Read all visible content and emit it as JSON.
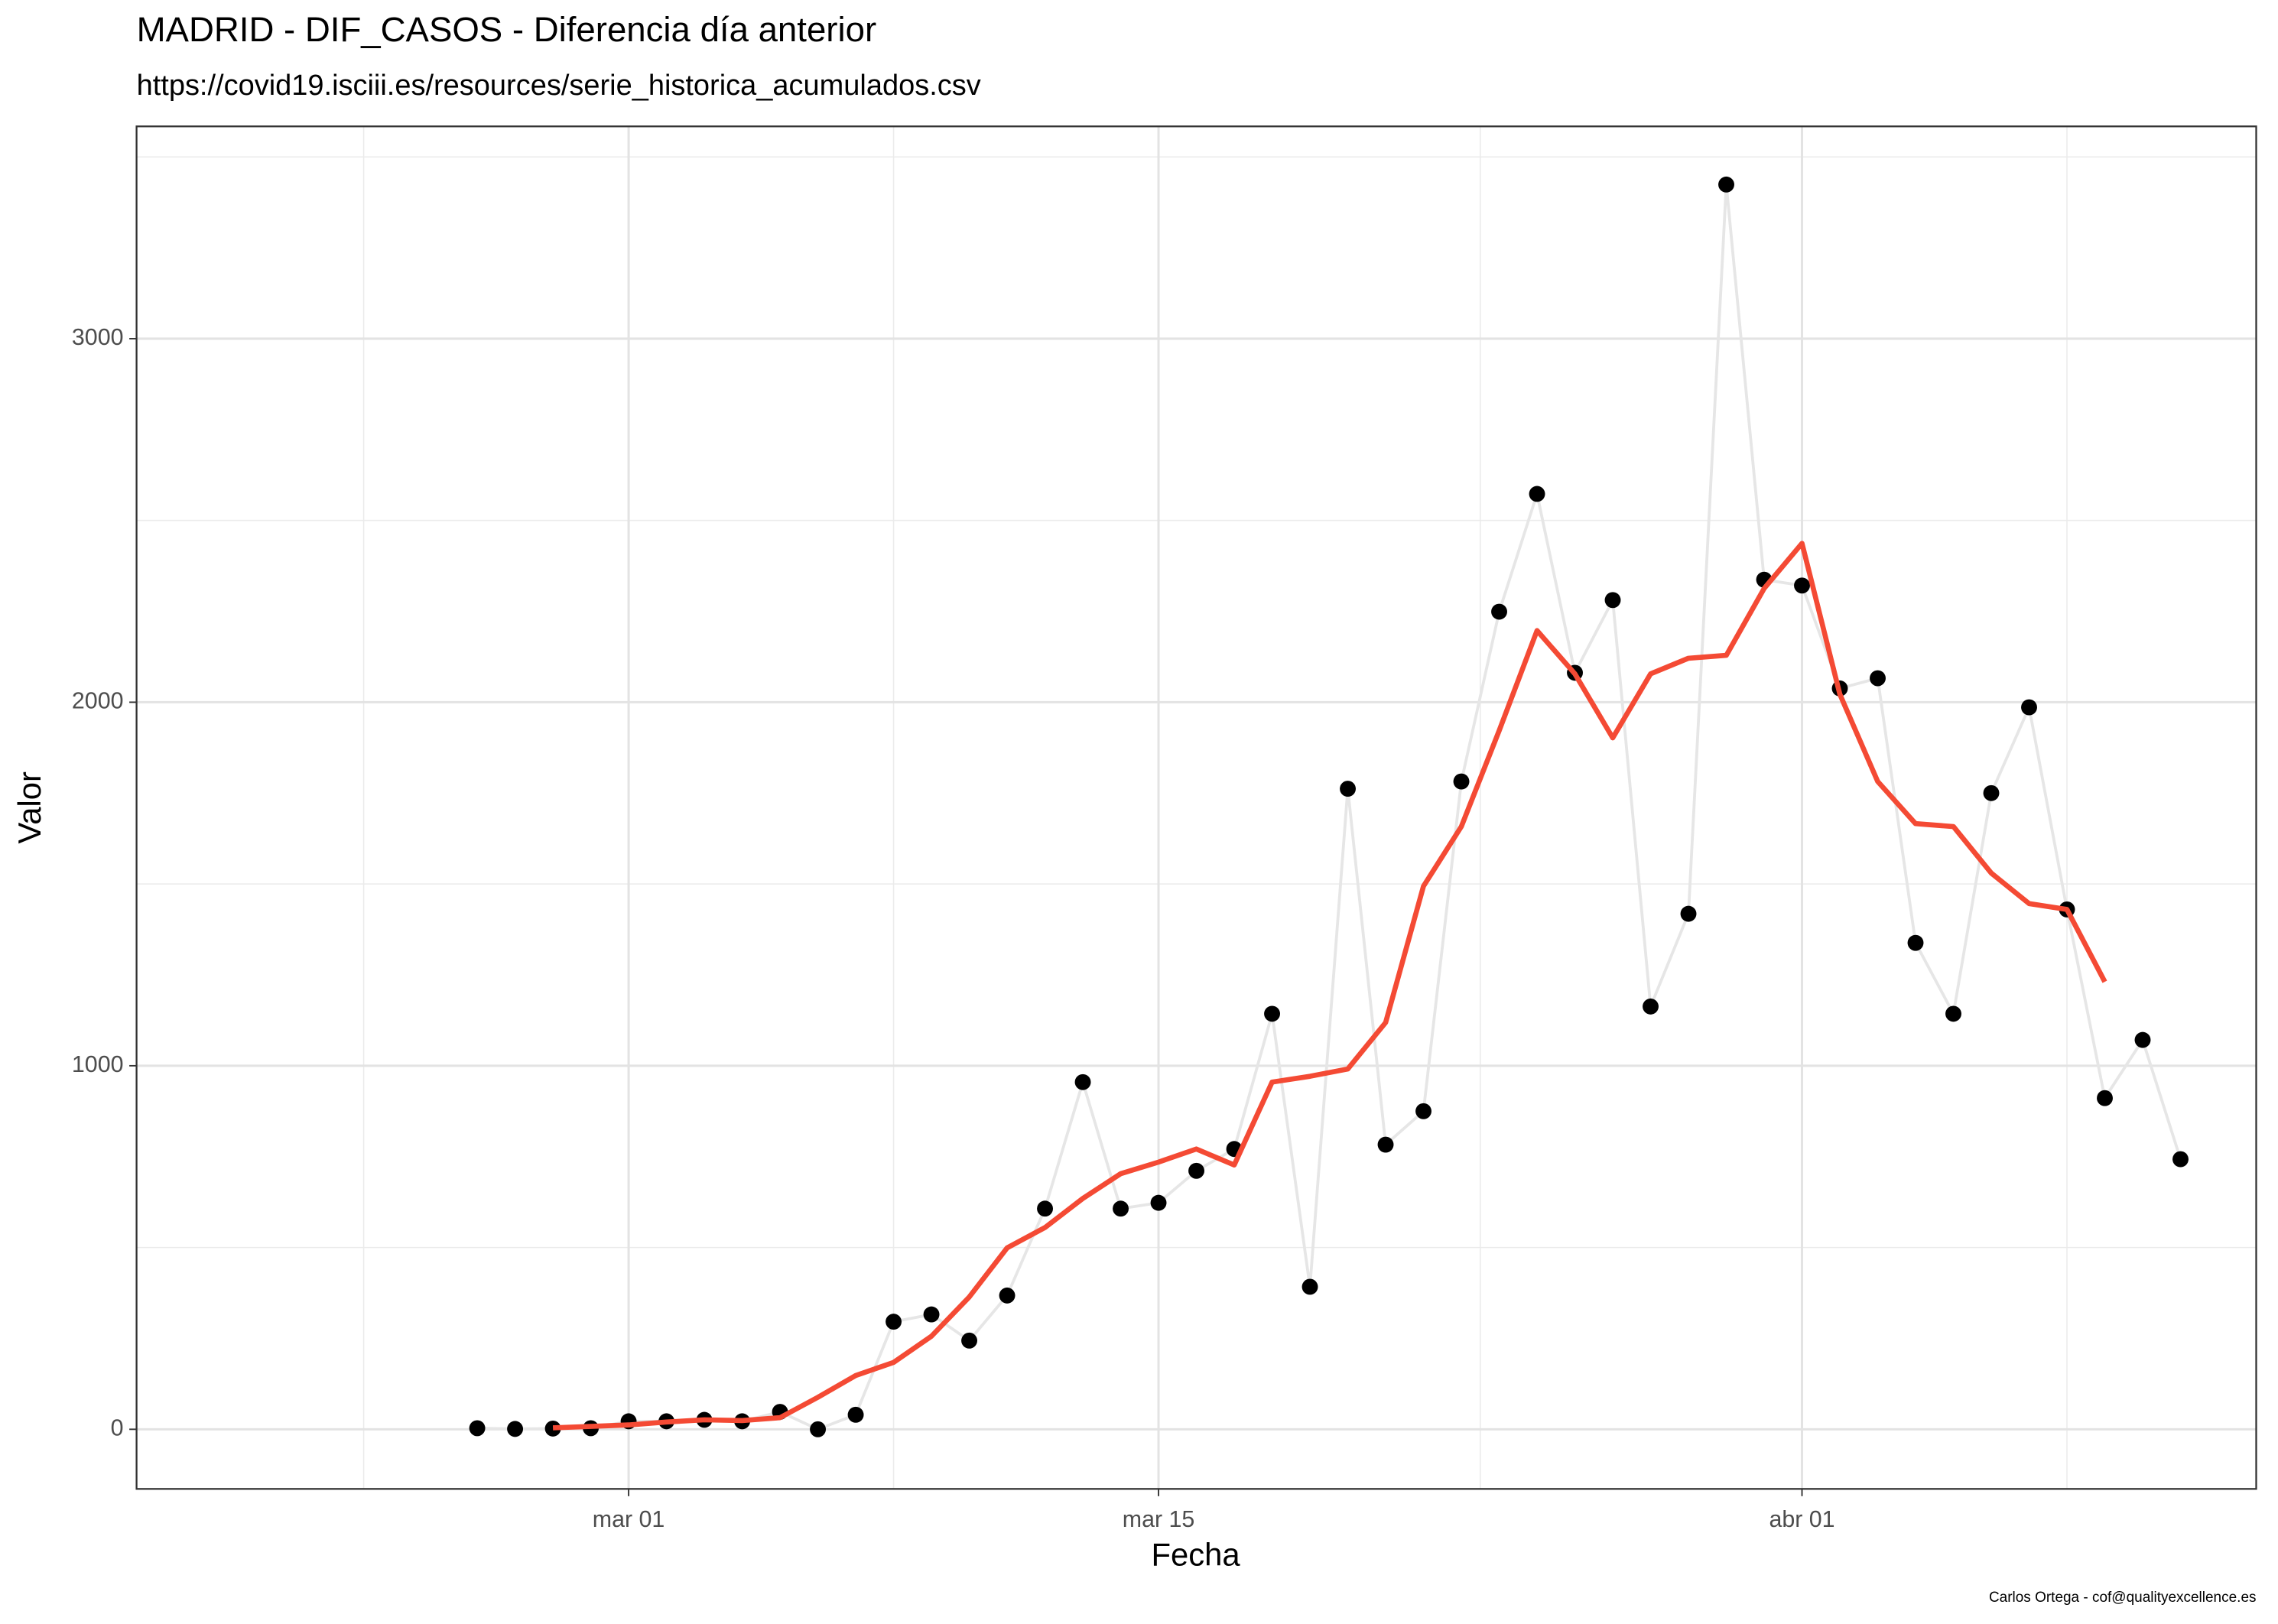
{
  "chart_data": {
    "type": "line",
    "title": "MADRID - DIF_CASOS - Diferencia día anterior",
    "subtitle": "https://covid19.isciii.es/resources/serie_historica_acumulados.csv",
    "x_label": "Fecha",
    "y_label": "Valor",
    "caption": "Carlos Ortega - cof@qualityexcellence.es",
    "x": [
      "02-26",
      "02-27",
      "02-28",
      "02-29",
      "03-01",
      "03-02",
      "03-03",
      "03-04",
      "03-05",
      "03-06",
      "03-07",
      "03-08",
      "03-09",
      "03-10",
      "03-11",
      "03-12",
      "03-13",
      "03-14",
      "03-15",
      "03-16",
      "03-17",
      "03-18",
      "03-19",
      "03-20",
      "03-21",
      "03-22",
      "03-23",
      "03-24",
      "03-25",
      "03-26",
      "03-27",
      "03-28",
      "03-29",
      "03-30",
      "03-31",
      "04-01",
      "04-02",
      "04-03",
      "04-04",
      "04-05",
      "04-06",
      "04-07",
      "04-08",
      "04-09",
      "04-10",
      "04-11"
    ],
    "series": [
      {
        "color": "#000000",
        "line_color": "#e6e6e6",
        "values": [
          3,
          1,
          2,
          3,
          22,
          22,
          26,
          22,
          48,
          0,
          40,
          296,
          316,
          244,
          368,
          607,
          955,
          607,
          623,
          711,
          771,
          1143,
          392,
          1762,
          783,
          875,
          1782,
          2249,
          2573,
          2081,
          2281,
          1163,
          1418,
          3424,
          2337,
          2321,
          2038,
          2066,
          1338,
          1143,
          1750,
          1986,
          1430,
          911,
          1071,
          743
        ]
      },
      {
        "color": "#f44a34",
        "values": [
          null,
          null,
          4,
          8,
          12,
          20,
          26,
          24,
          32,
          88,
          148,
          184,
          256,
          364,
          499,
          555,
          635,
          703,
          735,
          771,
          727,
          955,
          971,
          991,
          1119,
          1494,
          1658,
          1922,
          2197,
          2078,
          1902,
          2078,
          2121,
          2129,
          2313,
          2437,
          2022,
          1782,
          1666,
          1658,
          1530,
          1446,
          1430,
          1231,
          null,
          null
        ]
      }
    ],
    "xlim": [
      "02-17",
      "04-13"
    ],
    "xticks": [
      {
        "value": "03-01",
        "label": "mar 01"
      },
      {
        "value": "03-15",
        "label": "mar 15"
      },
      {
        "value": "04-01",
        "label": "abr 01"
      }
    ],
    "ylim": [
      -164,
      3584
    ],
    "yticks": [
      0,
      1000,
      2000,
      3000
    ],
    "grid": true
  }
}
